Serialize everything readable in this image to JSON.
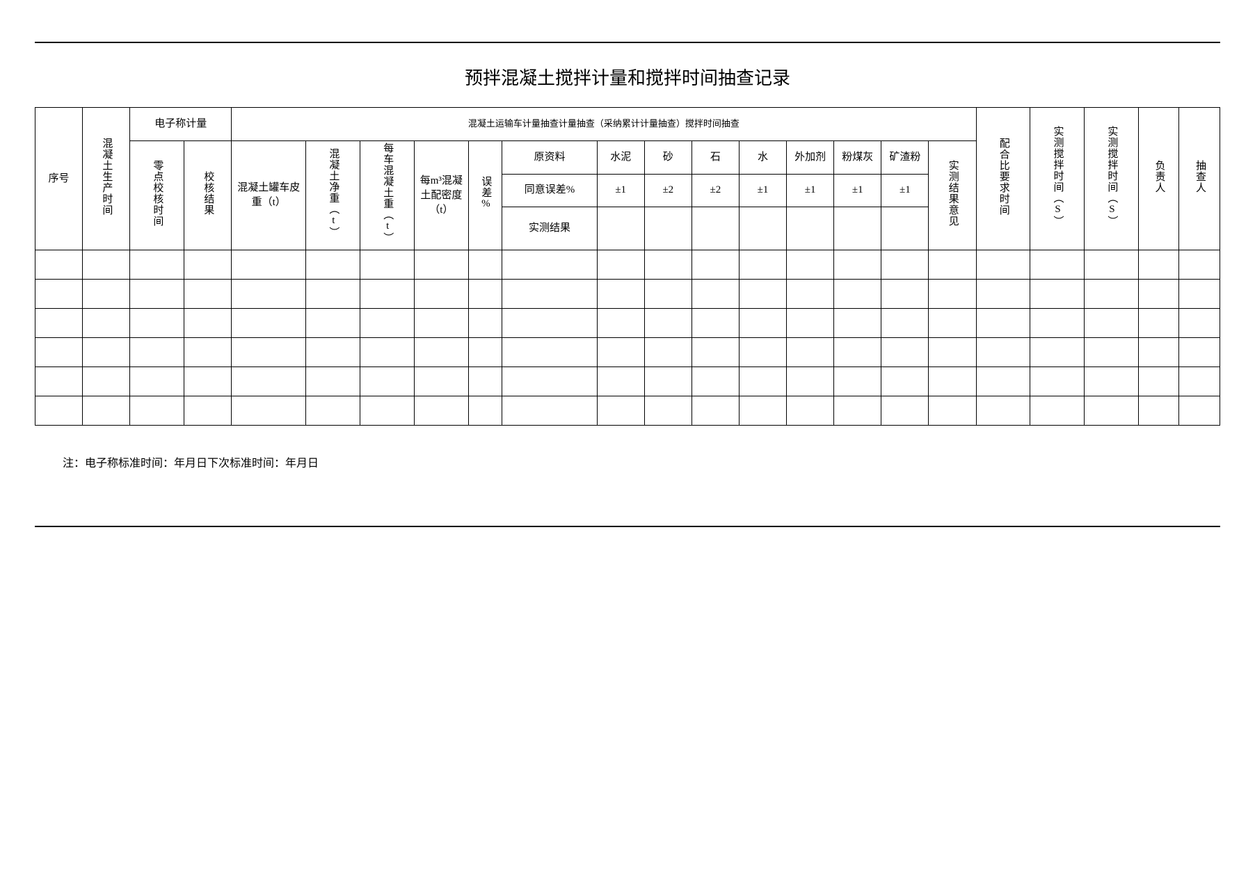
{
  "title": "预拌混凝土搅拌计量和搅拌时间抽查记录",
  "headers": {
    "seq": "序号",
    "prod_time": "混凝土生产时间",
    "escale_group": "电子称计量",
    "zero_time": "零点校核时间",
    "check_result": "校核结果",
    "transport_group": "混凝土运输车计量抽查计量抽查（采纳累计计量抽查）搅拌时间抽查",
    "tare": "混凝土罐车皮重（t）",
    "net": "混凝土净重（t）",
    "per_truck_wt": "每车混凝土重（t）",
    "per_m3": "每m³混凝土配密度（t）",
    "err_pct": "误差%",
    "raw": "原资料",
    "allow_err": "同意误差%",
    "actual": "实测结果",
    "cement": "水泥",
    "sand": "砂",
    "stone": "石",
    "water": "水",
    "additive": "外加剂",
    "flyash": "粉煤灰",
    "slag": "矿渣粉",
    "opinion": "实测结果意见",
    "req_time": "配合比要求时间",
    "meas_mix_time": "实测搅拌时间（S）",
    "meas_mix_time2": "实测搅拌时间（S）",
    "resp": "负责人",
    "spot": "抽查人",
    "tol_1": "±1",
    "tol_2": "±2"
  },
  "note": "注：电子称标准时间：年月日下次标准时间：年月日",
  "rows": 6,
  "colors": {
    "bg": "#ffffff",
    "border": "#000000",
    "text": "#000000"
  },
  "fonts": {
    "title_size": 26,
    "cell_size": 15,
    "small_size": 13,
    "note_size": 16,
    "family": "SimSun"
  },
  "col_widths_pct": [
    3.5,
    3.5,
    4.0,
    3.5,
    5.0,
    4.0,
    4.0,
    4.0,
    2.5,
    6.5,
    3.5,
    3.5,
    3.5,
    3.5,
    3.5,
    3.5,
    3.5,
    3.5,
    4.0,
    4.0,
    4.0,
    3.0,
    3.0
  ]
}
